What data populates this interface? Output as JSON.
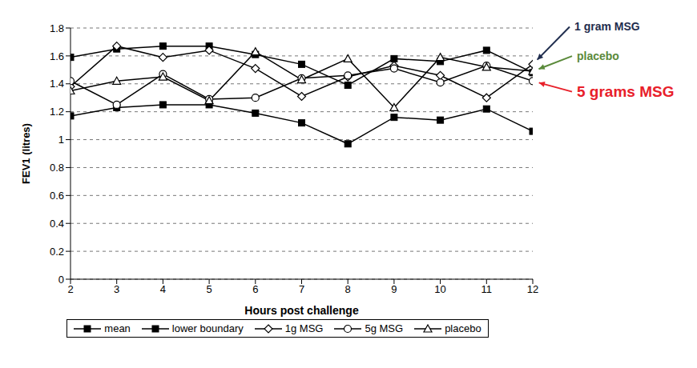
{
  "chart_data": {
    "type": "line",
    "x_label": "Hours post challenge",
    "y_label": "FEV1 (litres)",
    "x": [
      2,
      3,
      4,
      5,
      6,
      7,
      8,
      9,
      10,
      11,
      12
    ],
    "xlim": [
      2,
      12
    ],
    "xticks": [
      2,
      3,
      4,
      5,
      6,
      7,
      8,
      9,
      10,
      11,
      12
    ],
    "ylim": [
      0,
      1.8
    ],
    "yticks": [
      0,
      0.2,
      0.4,
      0.6,
      0.8,
      1,
      1.2,
      1.4,
      1.6,
      1.8
    ],
    "grid": true,
    "legend": "bottom",
    "series": [
      {
        "name": "mean",
        "color": "#000000",
        "marker": "square",
        "values": [
          1.59,
          1.65,
          1.67,
          1.67,
          1.61,
          1.54,
          1.39,
          1.58,
          1.56,
          1.64,
          1.48
        ]
      },
      {
        "name": "lower boundary",
        "color": "#000000",
        "marker": "square",
        "values": [
          1.17,
          1.23,
          1.25,
          1.25,
          1.19,
          1.12,
          0.97,
          1.16,
          1.14,
          1.22,
          1.06
        ]
      },
      {
        "name": "1g MSG",
        "color": "#000000",
        "marker": "diamond",
        "values": [
          1.38,
          1.67,
          1.59,
          1.64,
          1.51,
          1.31,
          1.45,
          1.53,
          1.46,
          1.3,
          1.54
        ]
      },
      {
        "name": "5g MSG",
        "color": "#000000",
        "marker": "circle",
        "values": [
          1.42,
          1.25,
          1.47,
          1.29,
          1.3,
          1.44,
          1.46,
          1.51,
          1.41,
          1.53,
          1.42
        ]
      },
      {
        "name": "placebo",
        "color": "#000000",
        "marker": "triangle",
        "values": [
          1.35,
          1.42,
          1.45,
          1.28,
          1.63,
          1.43,
          1.58,
          1.23,
          1.59,
          1.52,
          1.49
        ]
      }
    ],
    "annotations": [
      {
        "text": "1 gram MSG",
        "color": "#1f2d4e",
        "series": "1g MSG"
      },
      {
        "text": "placebo",
        "color": "#5a8a3a",
        "series": "placebo"
      },
      {
        "text": "5 grams MSG",
        "color": "#e8202a",
        "series": "5g MSG"
      }
    ]
  }
}
